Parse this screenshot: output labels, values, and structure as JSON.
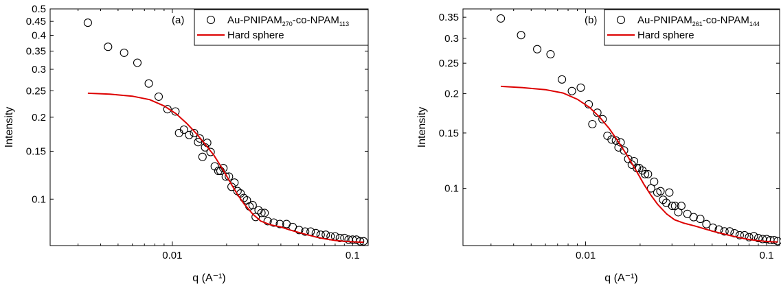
{
  "chart_data": [
    {
      "type": "scatter",
      "panel_label": "(a)",
      "xlabel": "q (A⁻¹)",
      "ylabel": "Intensity",
      "xscale": "log",
      "yscale": "log",
      "xlim": [
        0.0021,
        0.122
      ],
      "ylim": [
        0.0675,
        0.5
      ],
      "xticks": [
        0.01,
        0.1
      ],
      "xtick_labels": [
        "0.01",
        "0.1"
      ],
      "yticks": [
        0.5,
        0.45,
        0.4,
        0.35,
        0.3,
        0.25,
        0.2,
        0.15,
        0.1
      ],
      "ytick_labels": [
        "0.5",
        "0.45",
        "0.4",
        "0.35",
        "0.3",
        "0.25",
        "0.2",
        "0.15",
        "0.1"
      ],
      "grid": false,
      "legend_position": "top-right",
      "series": [
        {
          "name": "Au-PNIPAM270-co-NPAM113",
          "legend_parts": [
            "Au-PNIPAM",
            "270",
            "-co-NPAM",
            "113"
          ],
          "style": "open-circle",
          "color": "#000000",
          "x": [
            0.0034,
            0.0044,
            0.0054,
            0.0064,
            0.0074,
            0.0084,
            0.0094,
            0.0104,
            0.0109,
            0.0116,
            0.0124,
            0.0132,
            0.0139,
            0.0142,
            0.0147,
            0.0152,
            0.0156,
            0.0163,
            0.0172,
            0.018,
            0.0185,
            0.0192,
            0.0198,
            0.0206,
            0.0213,
            0.0221,
            0.023,
            0.0239,
            0.0249,
            0.0259,
            0.0268,
            0.0279,
            0.029,
            0.0301,
            0.0312,
            0.0325,
            0.0338,
            0.0365,
            0.0395,
            0.043,
            0.0465,
            0.0505,
            0.0545,
            0.0585,
            0.0625,
            0.0665,
            0.071,
            0.0755,
            0.08,
            0.085,
            0.09,
            0.095,
            0.1,
            0.105,
            0.11,
            0.115
          ],
          "y": [
            0.445,
            0.363,
            0.345,
            0.317,
            0.266,
            0.238,
            0.214,
            0.21,
            0.175,
            0.18,
            0.172,
            0.175,
            0.162,
            0.167,
            0.143,
            0.155,
            0.161,
            0.149,
            0.132,
            0.127,
            0.127,
            0.13,
            0.121,
            0.121,
            0.111,
            0.115,
            0.107,
            0.105,
            0.101,
            0.099,
            0.094,
            0.095,
            0.086,
            0.091,
            0.089,
            0.089,
            0.083,
            0.082,
            0.081,
            0.081,
            0.079,
            0.077,
            0.076,
            0.076,
            0.075,
            0.074,
            0.074,
            0.073,
            0.073,
            0.072,
            0.072,
            0.071,
            0.071,
            0.071,
            0.07,
            0.07
          ]
        },
        {
          "name": "Hard sphere",
          "style": "line",
          "color": "#dd0000",
          "x": [
            0.0034,
            0.0045,
            0.006,
            0.0075,
            0.009,
            0.0105,
            0.012,
            0.0135,
            0.015,
            0.017,
            0.019,
            0.021,
            0.023,
            0.025,
            0.028,
            0.031,
            0.035,
            0.04,
            0.045,
            0.05,
            0.056,
            0.063,
            0.07,
            0.08,
            0.09,
            0.1,
            0.11,
            0.115
          ],
          "y": [
            0.245,
            0.243,
            0.239,
            0.232,
            0.22,
            0.206,
            0.19,
            0.175,
            0.161,
            0.145,
            0.129,
            0.115,
            0.104,
            0.096,
            0.088,
            0.083,
            0.0805,
            0.079,
            0.077,
            0.0755,
            0.074,
            0.0725,
            0.0715,
            0.0705,
            0.07,
            0.0697,
            0.0695,
            0.0695
          ]
        }
      ]
    },
    {
      "type": "scatter",
      "panel_label": "(b)",
      "xlabel": "q (A⁻¹)",
      "ylabel": "Intensity",
      "xscale": "log",
      "yscale": "log",
      "xlim": [
        0.0021,
        0.118
      ],
      "ylim": [
        0.0658,
        0.372
      ],
      "xticks": [
        0.01,
        0.1
      ],
      "xtick_labels": [
        "0.01",
        "0.1"
      ],
      "yticks": [
        0.35,
        0.3,
        0.25,
        0.2,
        0.15,
        0.1
      ],
      "ytick_labels": [
        "0.35",
        "0.3",
        "0.25",
        "0.2",
        "0.15",
        "0.1"
      ],
      "grid": false,
      "legend_position": "top-right",
      "series": [
        {
          "name": "Au-PNIPAM261-co-NPAM144",
          "legend_parts": [
            "Au-PNIPAM",
            "261",
            "-co-NPAM",
            "144"
          ],
          "style": "open-circle",
          "color": "#000000",
          "x": [
            0.0034,
            0.0044,
            0.0054,
            0.0064,
            0.0074,
            0.0084,
            0.0094,
            0.0104,
            0.0109,
            0.0116,
            0.0124,
            0.0132,
            0.0139,
            0.0147,
            0.0152,
            0.0156,
            0.0163,
            0.0172,
            0.018,
            0.0185,
            0.0192,
            0.0198,
            0.0206,
            0.0213,
            0.0221,
            0.023,
            0.0239,
            0.0249,
            0.0259,
            0.0268,
            0.0279,
            0.029,
            0.0301,
            0.0312,
            0.0325,
            0.0338,
            0.0365,
            0.0395,
            0.043,
            0.0465,
            0.0505,
            0.0545,
            0.0585,
            0.0625,
            0.0665,
            0.071,
            0.0755,
            0.08,
            0.085,
            0.09,
            0.095,
            0.1,
            0.105,
            0.11,
            0.115
          ],
          "y": [
            0.347,
            0.307,
            0.277,
            0.267,
            0.222,
            0.204,
            0.209,
            0.185,
            0.16,
            0.174,
            0.166,
            0.147,
            0.143,
            0.142,
            0.135,
            0.14,
            0.132,
            0.124,
            0.119,
            0.122,
            0.116,
            0.116,
            0.114,
            0.111,
            0.111,
            0.1,
            0.105,
            0.097,
            0.098,
            0.092,
            0.09,
            0.097,
            0.088,
            0.088,
            0.084,
            0.088,
            0.083,
            0.081,
            0.08,
            0.077,
            0.075,
            0.074,
            0.073,
            0.073,
            0.072,
            0.071,
            0.071,
            0.07,
            0.0705,
            0.0695,
            0.069,
            0.069,
            0.0685,
            0.0685,
            0.068
          ]
        },
        {
          "name": "Hard sphere",
          "style": "line",
          "color": "#dd0000",
          "x": [
            0.0034,
            0.0045,
            0.006,
            0.0075,
            0.009,
            0.0105,
            0.012,
            0.0135,
            0.015,
            0.017,
            0.019,
            0.021,
            0.023,
            0.025,
            0.028,
            0.031,
            0.035,
            0.04,
            0.045,
            0.05,
            0.056,
            0.063,
            0.07,
            0.08,
            0.09,
            0.1,
            0.11,
            0.115
          ],
          "y": [
            0.211,
            0.209,
            0.206,
            0.201,
            0.192,
            0.181,
            0.168,
            0.155,
            0.142,
            0.127,
            0.114,
            0.103,
            0.095,
            0.089,
            0.083,
            0.0795,
            0.0775,
            0.076,
            0.0745,
            0.0732,
            0.072,
            0.0708,
            0.0698,
            0.0688,
            0.0682,
            0.0678,
            0.0676,
            0.0676
          ]
        }
      ]
    }
  ]
}
